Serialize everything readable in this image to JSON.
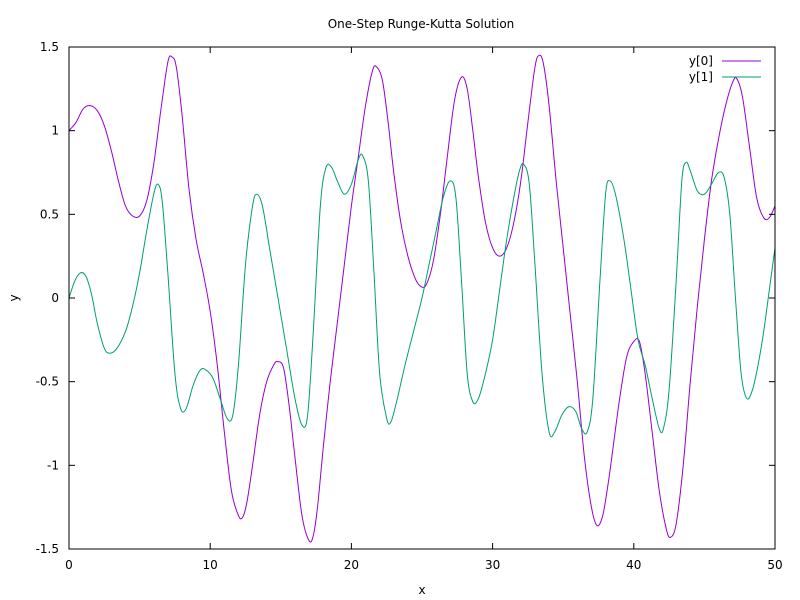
{
  "chart_data": {
    "type": "line",
    "title": "One-Step Runge-Kutta Solution",
    "xlabel": "x",
    "ylabel": "y",
    "xlim": [
      0,
      50
    ],
    "ylim": [
      -1.5,
      1.5
    ],
    "xticks": [
      "0",
      "10",
      "20",
      "30",
      "40",
      "50"
    ],
    "yticks": [
      "-1.5",
      "-1",
      "-0.5",
      "0",
      "0.5",
      "1",
      "1.5"
    ],
    "grid": false,
    "legend_position": "top-right",
    "series": [
      {
        "name": "y[0]",
        "color": "#9400d3",
        "points": [
          [
            0,
            1.0
          ],
          [
            0.5,
            1.05
          ],
          [
            1.0,
            1.13
          ],
          [
            1.5,
            1.15
          ],
          [
            2.0,
            1.12
          ],
          [
            2.5,
            1.03
          ],
          [
            3.0,
            0.88
          ],
          [
            3.5,
            0.7
          ],
          [
            4.0,
            0.55
          ],
          [
            4.5,
            0.49
          ],
          [
            5.0,
            0.49
          ],
          [
            5.5,
            0.58
          ],
          [
            6.0,
            0.8
          ],
          [
            6.5,
            1.12
          ],
          [
            7.0,
            1.41
          ],
          [
            7.3,
            1.44
          ],
          [
            7.6,
            1.38
          ],
          [
            8.0,
            1.1
          ],
          [
            8.5,
            0.65
          ],
          [
            9.0,
            0.35
          ],
          [
            9.5,
            0.15
          ],
          [
            10.0,
            -0.08
          ],
          [
            10.5,
            -0.4
          ],
          [
            11.0,
            -0.8
          ],
          [
            11.5,
            -1.15
          ],
          [
            12.0,
            -1.3
          ],
          [
            12.3,
            -1.31
          ],
          [
            12.6,
            -1.22
          ],
          [
            13.0,
            -1.0
          ],
          [
            13.5,
            -0.7
          ],
          [
            14.0,
            -0.5
          ],
          [
            14.5,
            -0.4
          ],
          [
            14.8,
            -0.38
          ],
          [
            15.2,
            -0.42
          ],
          [
            15.6,
            -0.65
          ],
          [
            16.0,
            -0.95
          ],
          [
            16.5,
            -1.3
          ],
          [
            17.0,
            -1.45
          ],
          [
            17.3,
            -1.42
          ],
          [
            17.6,
            -1.25
          ],
          [
            18.0,
            -0.9
          ],
          [
            18.5,
            -0.5
          ],
          [
            19.0,
            -0.15
          ],
          [
            19.5,
            0.2
          ],
          [
            20.0,
            0.55
          ],
          [
            20.5,
            0.85
          ],
          [
            21.0,
            1.15
          ],
          [
            21.5,
            1.36
          ],
          [
            21.8,
            1.38
          ],
          [
            22.2,
            1.3
          ],
          [
            22.6,
            1.05
          ],
          [
            23.0,
            0.75
          ],
          [
            23.5,
            0.45
          ],
          [
            24.0,
            0.25
          ],
          [
            24.5,
            0.12
          ],
          [
            24.9,
            0.07
          ],
          [
            25.3,
            0.08
          ],
          [
            25.8,
            0.22
          ],
          [
            26.3,
            0.5
          ],
          [
            26.8,
            0.85
          ],
          [
            27.3,
            1.18
          ],
          [
            27.8,
            1.32
          ],
          [
            28.2,
            1.25
          ],
          [
            28.6,
            1.0
          ],
          [
            29.0,
            0.72
          ],
          [
            29.5,
            0.45
          ],
          [
            30.0,
            0.3
          ],
          [
            30.5,
            0.25
          ],
          [
            31.0,
            0.3
          ],
          [
            31.5,
            0.45
          ],
          [
            32.0,
            0.7
          ],
          [
            32.5,
            1.05
          ],
          [
            33.0,
            1.38
          ],
          [
            33.3,
            1.45
          ],
          [
            33.6,
            1.4
          ],
          [
            34.0,
            1.15
          ],
          [
            34.5,
            0.7
          ],
          [
            35.0,
            0.3
          ],
          [
            35.5,
            -0.1
          ],
          [
            36.0,
            -0.5
          ],
          [
            36.5,
            -0.95
          ],
          [
            37.0,
            -1.25
          ],
          [
            37.4,
            -1.36
          ],
          [
            37.8,
            -1.3
          ],
          [
            38.2,
            -1.1
          ],
          [
            38.6,
            -0.85
          ],
          [
            39.0,
            -0.6
          ],
          [
            39.5,
            -0.35
          ],
          [
            40.0,
            -0.26
          ],
          [
            40.4,
            -0.26
          ],
          [
            40.8,
            -0.45
          ],
          [
            41.3,
            -0.8
          ],
          [
            41.8,
            -1.15
          ],
          [
            42.3,
            -1.38
          ],
          [
            42.6,
            -1.43
          ],
          [
            43.0,
            -1.35
          ],
          [
            43.5,
            -1.0
          ],
          [
            44.0,
            -0.5
          ],
          [
            44.5,
            -0.05
          ],
          [
            45.0,
            0.35
          ],
          [
            45.5,
            0.7
          ],
          [
            46.0,
            0.95
          ],
          [
            46.5,
            1.15
          ],
          [
            47.0,
            1.29
          ],
          [
            47.3,
            1.31
          ],
          [
            47.7,
            1.2
          ],
          [
            48.2,
            0.9
          ],
          [
            48.7,
            0.6
          ],
          [
            49.2,
            0.48
          ],
          [
            49.6,
            0.48
          ],
          [
            50.0,
            0.55
          ]
        ]
      },
      {
        "name": "y[1]",
        "color": "#009e73",
        "points": [
          [
            0,
            0.0
          ],
          [
            0.4,
            0.1
          ],
          [
            0.8,
            0.15
          ],
          [
            1.2,
            0.13
          ],
          [
            1.6,
            0.02
          ],
          [
            2.0,
            -0.15
          ],
          [
            2.5,
            -0.3
          ],
          [
            2.9,
            -0.33
          ],
          [
            3.4,
            -0.3
          ],
          [
            4.0,
            -0.2
          ],
          [
            4.5,
            -0.05
          ],
          [
            5.0,
            0.15
          ],
          [
            5.5,
            0.4
          ],
          [
            6.0,
            0.62
          ],
          [
            6.3,
            0.68
          ],
          [
            6.6,
            0.58
          ],
          [
            7.0,
            0.15
          ],
          [
            7.5,
            -0.45
          ],
          [
            7.9,
            -0.66
          ],
          [
            8.3,
            -0.66
          ],
          [
            8.8,
            -0.52
          ],
          [
            9.3,
            -0.43
          ],
          [
            9.7,
            -0.43
          ],
          [
            10.2,
            -0.48
          ],
          [
            10.7,
            -0.6
          ],
          [
            11.2,
            -0.72
          ],
          [
            11.6,
            -0.7
          ],
          [
            12.0,
            -0.4
          ],
          [
            12.5,
            0.2
          ],
          [
            13.0,
            0.55
          ],
          [
            13.3,
            0.62
          ],
          [
            13.7,
            0.55
          ],
          [
            14.2,
            0.3
          ],
          [
            14.8,
            0.0
          ],
          [
            15.4,
            -0.3
          ],
          [
            16.0,
            -0.6
          ],
          [
            16.5,
            -0.76
          ],
          [
            16.9,
            -0.7
          ],
          [
            17.3,
            -0.2
          ],
          [
            17.8,
            0.55
          ],
          [
            18.2,
            0.78
          ],
          [
            18.6,
            0.78
          ],
          [
            19.0,
            0.7
          ],
          [
            19.5,
            0.62
          ],
          [
            20.0,
            0.68
          ],
          [
            20.5,
            0.83
          ],
          [
            20.8,
            0.85
          ],
          [
            21.2,
            0.7
          ],
          [
            21.6,
            0.15
          ],
          [
            22.0,
            -0.45
          ],
          [
            22.5,
            -0.72
          ],
          [
            22.8,
            -0.74
          ],
          [
            23.2,
            -0.62
          ],
          [
            23.8,
            -0.4
          ],
          [
            24.4,
            -0.2
          ],
          [
            25.0,
            0.0
          ],
          [
            25.5,
            0.2
          ],
          [
            26.0,
            0.4
          ],
          [
            26.5,
            0.6
          ],
          [
            27.0,
            0.7
          ],
          [
            27.4,
            0.6
          ],
          [
            27.8,
            0.1
          ],
          [
            28.2,
            -0.45
          ],
          [
            28.6,
            -0.62
          ],
          [
            29.0,
            -0.6
          ],
          [
            29.5,
            -0.45
          ],
          [
            30.0,
            -0.25
          ],
          [
            30.5,
            0.05
          ],
          [
            31.0,
            0.35
          ],
          [
            31.5,
            0.6
          ],
          [
            31.9,
            0.76
          ],
          [
            32.2,
            0.8
          ],
          [
            32.6,
            0.68
          ],
          [
            33.0,
            0.2
          ],
          [
            33.5,
            -0.45
          ],
          [
            34.0,
            -0.8
          ],
          [
            34.4,
            -0.8
          ],
          [
            34.9,
            -0.7
          ],
          [
            35.4,
            -0.65
          ],
          [
            35.9,
            -0.68
          ],
          [
            36.3,
            -0.78
          ],
          [
            36.7,
            -0.8
          ],
          [
            37.1,
            -0.6
          ],
          [
            37.6,
            0.1
          ],
          [
            38.0,
            0.62
          ],
          [
            38.3,
            0.7
          ],
          [
            38.7,
            0.62
          ],
          [
            39.3,
            0.35
          ],
          [
            39.8,
            0.05
          ],
          [
            40.3,
            -0.25
          ],
          [
            40.8,
            -0.4
          ],
          [
            41.3,
            -0.6
          ],
          [
            41.8,
            -0.78
          ],
          [
            42.1,
            -0.78
          ],
          [
            42.5,
            -0.55
          ],
          [
            43.0,
            0.1
          ],
          [
            43.4,
            0.7
          ],
          [
            43.7,
            0.81
          ],
          [
            44.0,
            0.76
          ],
          [
            44.5,
            0.64
          ],
          [
            45.0,
            0.62
          ],
          [
            45.5,
            0.68
          ],
          [
            46.0,
            0.75
          ],
          [
            46.4,
            0.72
          ],
          [
            46.8,
            0.5
          ],
          [
            47.2,
            0.0
          ],
          [
            47.6,
            -0.45
          ],
          [
            48.0,
            -0.6
          ],
          [
            48.4,
            -0.55
          ],
          [
            48.8,
            -0.4
          ],
          [
            49.2,
            -0.2
          ],
          [
            49.6,
            0.05
          ],
          [
            50.0,
            0.3
          ]
        ]
      }
    ]
  }
}
